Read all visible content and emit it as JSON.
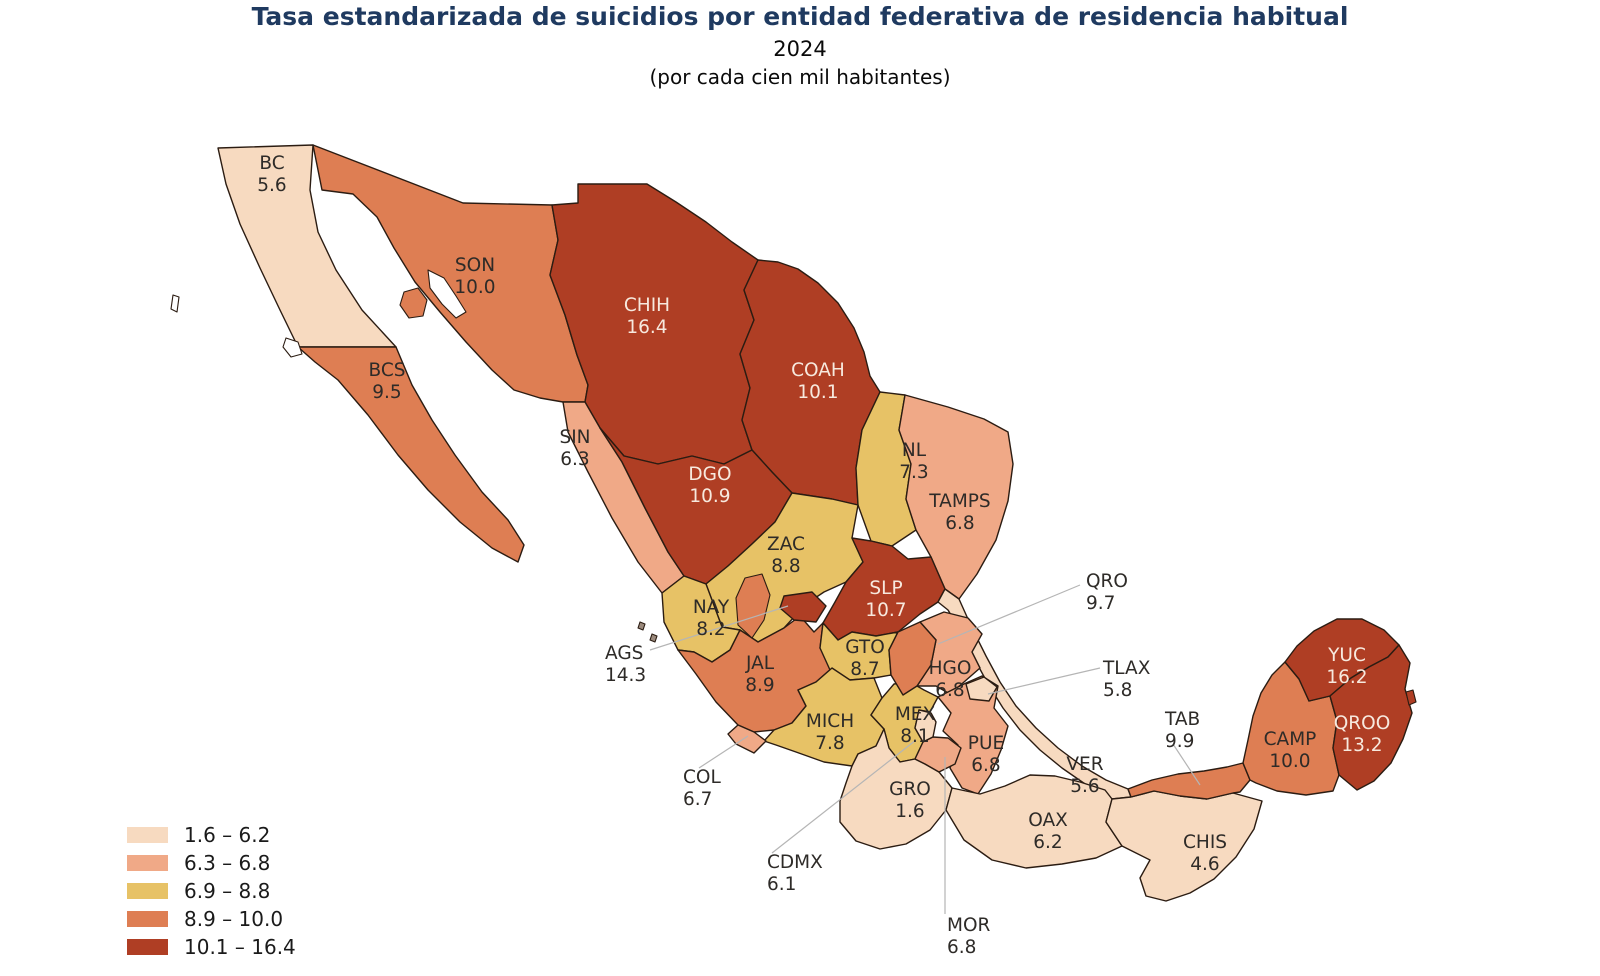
{
  "header": {
    "title": "Tasa estandarizada de suicidios por entidad federativa de residencia habitual",
    "year": "2024",
    "subtitle": "(por cada cien mil habitantes)"
  },
  "colors": {
    "title": "#1f3a60",
    "border": "#2b1c12",
    "leader": "#b5b5b5",
    "label_dark": "#2e2b28",
    "label_light": "#f7e9de",
    "legend_text": "#1a1a1a",
    "background": "#ffffff"
  },
  "chart_data": {
    "type": "heatmap",
    "subtype": "choropleth",
    "region": "Mexico, entidades federativas",
    "title": "Tasa estandarizada de suicidios por entidad federativa de residencia habitual",
    "year": "2024",
    "unit": "por cada cien mil habitantes",
    "legend_position": "bottom-left",
    "bins": [
      {
        "label": "1.6 – 6.2",
        "min": 1.6,
        "max": 6.2,
        "color": "#F7DAC0"
      },
      {
        "label": "6.3 – 6.8",
        "min": 6.3,
        "max": 6.8,
        "color": "#F0A987"
      },
      {
        "label": "6.9 – 8.8",
        "min": 6.9,
        "max": 8.8,
        "color": "#E7C266"
      },
      {
        "label": "8.9 – 10.0",
        "min": 8.9,
        "max": 10.0,
        "color": "#DE7E53"
      },
      {
        "label": "10.1 – 16.4",
        "min": 10.1,
        "max": 16.4,
        "color": "#AF3E24"
      }
    ],
    "states": [
      {
        "code": "BC",
        "value": 5.6,
        "display": "5.6"
      },
      {
        "code": "BCS",
        "value": 9.5,
        "display": "9.5"
      },
      {
        "code": "SON",
        "value": 10.0,
        "display": "10.0"
      },
      {
        "code": "CHIH",
        "value": 16.4,
        "display": "16.4"
      },
      {
        "code": "COAH",
        "value": 10.1,
        "display": "10.1"
      },
      {
        "code": "NL",
        "value": 7.3,
        "display": "7.3"
      },
      {
        "code": "TAMPS",
        "value": 6.8,
        "display": "6.8"
      },
      {
        "code": "SIN",
        "value": 6.3,
        "display": "6.3"
      },
      {
        "code": "DGO",
        "value": 10.9,
        "display": "10.9"
      },
      {
        "code": "ZAC",
        "value": 8.8,
        "display": "8.8"
      },
      {
        "code": "SLP",
        "value": 10.7,
        "display": "10.7"
      },
      {
        "code": "VER",
        "value": 5.6,
        "display": "5.6"
      },
      {
        "code": "NAY",
        "value": 8.2,
        "display": "8.2"
      },
      {
        "code": "JAL",
        "value": 8.9,
        "display": "8.9"
      },
      {
        "code": "GTO",
        "value": 8.7,
        "display": "8.7"
      },
      {
        "code": "HGO",
        "value": 6.8,
        "display": "6.8"
      },
      {
        "code": "MICH",
        "value": 7.8,
        "display": "7.8"
      },
      {
        "code": "MEX",
        "value": 8.1,
        "display": "8.1"
      },
      {
        "code": "PUE",
        "value": 6.8,
        "display": "6.8"
      },
      {
        "code": "GRO",
        "value": 1.6,
        "display": "1.6"
      },
      {
        "code": "OAX",
        "value": 6.2,
        "display": "6.2"
      },
      {
        "code": "CHIS",
        "value": 4.6,
        "display": "4.6"
      },
      {
        "code": "TAB",
        "value": 9.9,
        "display": "9.9"
      },
      {
        "code": "CAMP",
        "value": 10.0,
        "display": "10.0"
      },
      {
        "code": "YUC",
        "value": 16.2,
        "display": "16.2"
      },
      {
        "code": "QROO",
        "value": 13.2,
        "display": "13.2"
      },
      {
        "code": "QRO",
        "value": 9.7,
        "display": "9.7"
      },
      {
        "code": "TLAX",
        "value": 5.8,
        "display": "5.8"
      },
      {
        "code": "CDMX",
        "value": 6.1,
        "display": "6.1"
      },
      {
        "code": "MOR",
        "value": 6.8,
        "display": "6.8"
      },
      {
        "code": "COL",
        "value": 6.7,
        "display": "6.7"
      },
      {
        "code": "AGS",
        "value": 14.3,
        "display": "14.3"
      }
    ]
  }
}
